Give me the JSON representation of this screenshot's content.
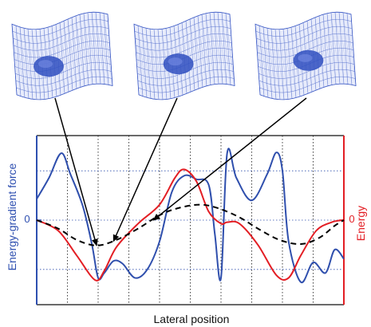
{
  "colors": {
    "background": "#ffffff",
    "left_axis": "#2e4fb0",
    "right_axis": "#e31e24",
    "force_curve": "#2f4fad",
    "energy_curve": "#e31e24",
    "dashed_curve": "#000000",
    "mesh": "#3d5bc6",
    "mesh_fill": "#e8ecfb",
    "bump": "#2f4fc0",
    "arrow": "#000000"
  },
  "icons": [
    "surface-mesh-icon",
    "surface-mesh-icon",
    "surface-mesh-icon"
  ],
  "chart_data": {
    "type": "line",
    "xlabel": "Lateral position",
    "ylabel_left": "Energy-gradient force",
    "ylabel_right": "Energy",
    "left_zero_label": "0",
    "right_zero_label": "0",
    "xlim": [
      0,
      10
    ],
    "ylim": [
      -1.2,
      1.2
    ],
    "grid": "dotted",
    "series": [
      {
        "key": "force",
        "axis": "left",
        "style": "solid",
        "x": [
          0,
          0.4,
          0.8,
          1.1,
          1.5,
          1.8,
          2.0,
          2.2,
          2.5,
          2.8,
          3.2,
          3.6,
          4.0,
          4.4,
          4.8,
          5.2,
          5.6,
          5.8,
          6.0,
          6.2,
          6.5,
          7.0,
          7.5,
          7.8,
          8.0,
          8.2,
          8.6,
          9.0,
          9.4,
          9.7,
          10.0
        ],
        "y": [
          0.3,
          0.6,
          0.95,
          0.65,
          0.2,
          -0.35,
          -0.82,
          -0.75,
          -0.58,
          -0.62,
          -0.82,
          -0.7,
          -0.3,
          0.4,
          0.63,
          0.58,
          0.5,
          -0.2,
          -0.82,
          0.95,
          0.6,
          0.28,
          0.65,
          0.96,
          0.7,
          -0.3,
          -0.88,
          -0.6,
          -0.75,
          -0.42,
          -0.55
        ]
      },
      {
        "key": "energy",
        "axis": "right",
        "style": "solid",
        "x": [
          0,
          0.7,
          1.3,
          1.9,
          2.2,
          2.6,
          3.3,
          4.0,
          4.5,
          4.8,
          5.2,
          5.6,
          6.0,
          6.2,
          6.6,
          7.2,
          7.8,
          8.2,
          8.6,
          9.1,
          9.6,
          10.0
        ],
        "y": [
          0.0,
          -0.15,
          -0.5,
          -0.85,
          -0.72,
          -0.38,
          -0.05,
          0.22,
          0.6,
          0.72,
          0.55,
          0.12,
          -0.05,
          -0.03,
          -0.05,
          -0.35,
          -0.78,
          -0.82,
          -0.5,
          -0.15,
          -0.03,
          0.0
        ]
      },
      {
        "key": "energy_dashed",
        "axis": "right",
        "style": "dashed",
        "x": [
          0,
          0.7,
          1.3,
          1.95,
          2.6,
          3.3,
          4.0,
          4.6,
          5.3,
          5.9,
          6.6,
          7.2,
          7.9,
          8.6,
          9.2,
          9.7,
          10.0
        ],
        "y": [
          0.0,
          -0.12,
          -0.28,
          -0.36,
          -0.28,
          -0.12,
          0.07,
          0.17,
          0.22,
          0.17,
          0.04,
          -0.12,
          -0.28,
          -0.34,
          -0.25,
          -0.08,
          0.0
        ]
      }
    ],
    "annotations": [
      {
        "from_panel": 0,
        "to_x": 1.95,
        "to_y": -0.36
      },
      {
        "from_panel": 1,
        "to_x": 2.5,
        "to_y": -0.3
      },
      {
        "from_panel": 2,
        "to_x": 3.8,
        "to_y": 0.0
      }
    ]
  }
}
